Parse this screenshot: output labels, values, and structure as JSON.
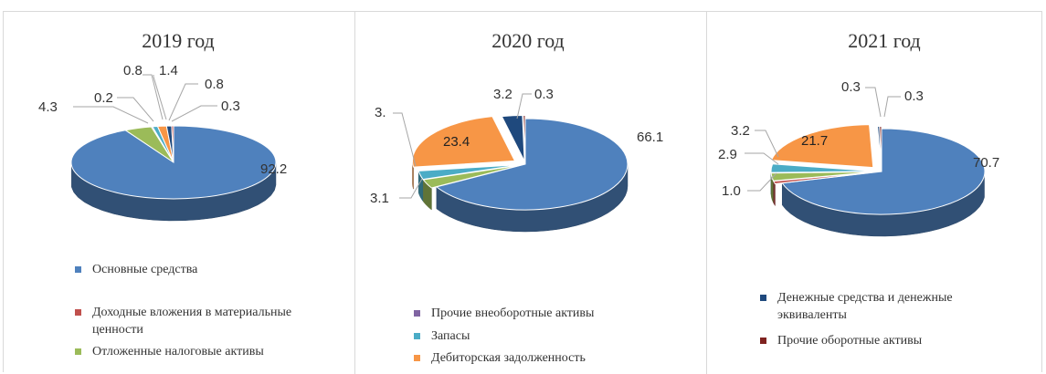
{
  "chart_data": [
    {
      "type": "pie",
      "title": "2019 год",
      "slices": [
        {
          "category": "Основные средства",
          "value": 92.2,
          "label": "92.2",
          "color": "#4f81bd"
        },
        {
          "category": "Отложенные налоговые активы",
          "value": 4.3,
          "label": "4.3",
          "color": "#9bbb59"
        },
        {
          "category": "Прочие внеоборотные активы",
          "value": 0.2,
          "label": "0.2",
          "color": "#8064a2"
        },
        {
          "category": "Запасы",
          "value": 0.8,
          "label": "0.8",
          "color": "#4bacc6"
        },
        {
          "category": "Дебиторская задолженность",
          "value": 1.4,
          "label": "1.4",
          "color": "#f79646"
        },
        {
          "category": "Денежные средства и денежные эквиваленты",
          "value": 0.8,
          "label": "0.8",
          "color": "#1f497d"
        },
        {
          "category": "Доходные вложения в материальные ценности",
          "value": 0.3,
          "label": "0.3",
          "color": "#c0504d"
        }
      ]
    },
    {
      "type": "pie",
      "title": "2020 год",
      "slices": [
        {
          "category": "Основные средства",
          "value": 66.1,
          "label": "66.1",
          "color": "#4f81bd"
        },
        {
          "category": "Отложенные налоговые активы",
          "value": 3.1,
          "label": "3.1",
          "color": "#9bbb59"
        },
        {
          "category": "Запасы",
          "value": 3.0,
          "label": "3.",
          "color": "#4bacc6"
        },
        {
          "category": "Дебиторская задолженность",
          "value": 23.4,
          "label": "23.4",
          "color": "#f79646"
        },
        {
          "category": "Денежные средства и денежные эквиваленты",
          "value": 3.2,
          "label": "3.2",
          "color": "#1f497d"
        },
        {
          "category": "Прочие оборотные активы",
          "value": 0.3,
          "label": "0.3",
          "color": "#7f2320"
        }
      ]
    },
    {
      "type": "pie",
      "title": "2021 год",
      "slices": [
        {
          "category": "Основные средства",
          "value": 70.7,
          "label": "70.7",
          "color": "#4f81bd"
        },
        {
          "category": "Доходные вложения в материальные ценности",
          "value": 1.0,
          "label": "1.0",
          "color": "#c0504d"
        },
        {
          "category": "Отложенные налоговые активы",
          "value": 2.9,
          "label": "2.9",
          "color": "#9bbb59"
        },
        {
          "category": "Запасы",
          "value": 3.2,
          "label": "3.2",
          "color": "#4bacc6"
        },
        {
          "category": "Дебиторская задолженность",
          "value": 21.7,
          "label": "21.7",
          "color": "#f79646"
        },
        {
          "category": "Денежные средства и денежные эквиваленты",
          "value": 0.3,
          "label": "0.3",
          "color": "#1f497d"
        },
        {
          "category": "Прочие оборотные активы",
          "value": 0.3,
          "label": "0.3",
          "color": "#7f2320"
        }
      ]
    }
  ],
  "legend": {
    "items": [
      {
        "label": "Основные средства",
        "color": "#4f81bd"
      },
      {
        "label": "Доходные вложения в материальные ценности",
        "color": "#c0504d"
      },
      {
        "label": "Отложенные налоговые активы",
        "color": "#9bbb59"
      },
      {
        "label": "Прочие внеоборотные активы",
        "color": "#8064a2"
      },
      {
        "label": "Запасы",
        "color": "#4bacc6"
      },
      {
        "label": "Дебиторская задолженность",
        "color": "#f79646"
      },
      {
        "label": "Денежные средства и денежные эквиваленты",
        "color": "#1f497d"
      },
      {
        "label": "Прочие оборотные активы",
        "color": "#7f2320"
      }
    ]
  }
}
